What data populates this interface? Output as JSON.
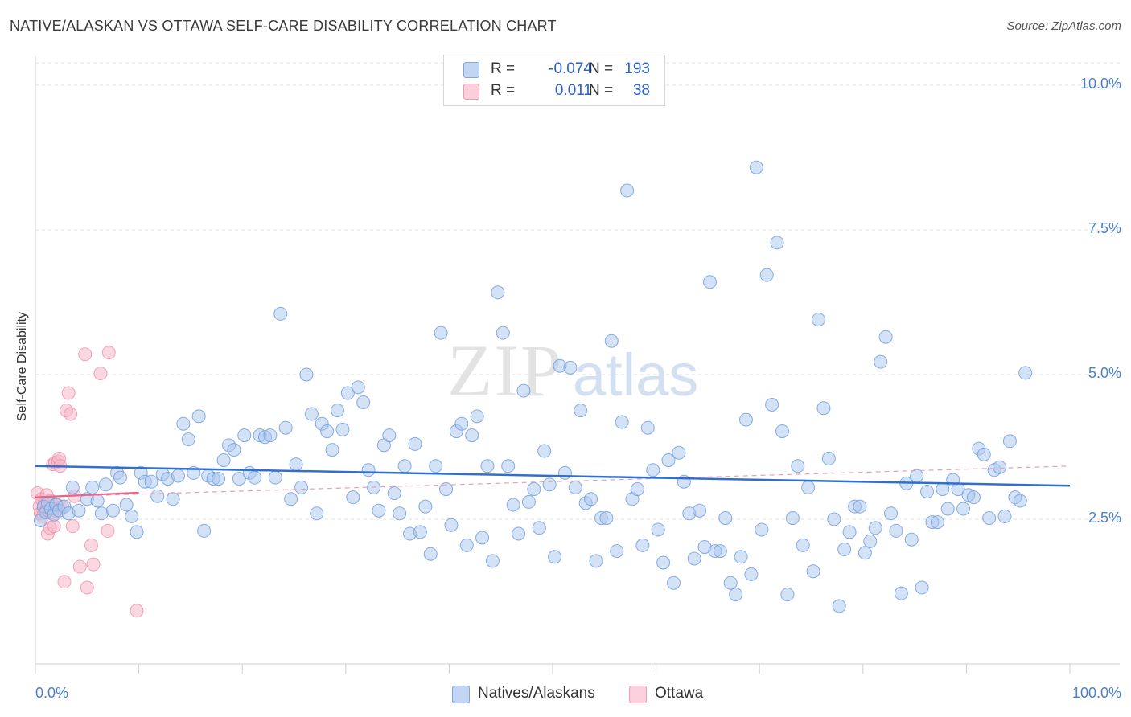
{
  "header": {
    "title": "NATIVE/ALASKAN VS OTTAWA SELF-CARE DISABILITY CORRELATION CHART",
    "source": "Source: ZipAtlas.com"
  },
  "watermark": {
    "zip": "ZIP",
    "atlas": "atlas"
  },
  "legend": {
    "series": [
      {
        "name": "Natives/Alaskans",
        "r_label": "R =",
        "r": "-0.074",
        "n_label": "N =",
        "n": "193",
        "color": "#a9c5ee"
      },
      {
        "name": "Ottawa",
        "r_label": "R =",
        "r": "0.011",
        "n_label": "N =",
        "n": "38",
        "color": "#f5b8c8"
      }
    ]
  },
  "chart_data": {
    "type": "scatter",
    "title": "NATIVE/ALASKAN VS OTTAWA SELF-CARE DISABILITY CORRELATION CHART",
    "xlabel": "",
    "ylabel": "Self-Care Disability",
    "xlim": [
      0,
      100
    ],
    "ylim": [
      0,
      10.5
    ],
    "x_tick_labels": [
      "0.0%",
      "100.0%"
    ],
    "y_ticks": [
      {
        "value": 2.5,
        "label": "2.5%"
      },
      {
        "value": 5.0,
        "label": "5.0%"
      },
      {
        "value": 7.5,
        "label": "7.5%"
      },
      {
        "value": 10.0,
        "label": "10.0%"
      }
    ],
    "grid": true,
    "series": [
      {
        "name": "Natives/Alaskans",
        "color": "#6a9ae0",
        "fill": "#a9c5ee",
        "trend": {
          "x": [
            0,
            100
          ],
          "y": [
            3.42,
            3.08
          ],
          "style": "solid",
          "color": "#2e6fd0"
        },
        "points": [
          [
            0.5,
            2.48
          ],
          [
            0.8,
            2.72
          ],
          [
            1.0,
            2.62
          ],
          [
            1.2,
            2.78
          ],
          [
            1.5,
            2.68
          ],
          [
            1.8,
            2.58
          ],
          [
            2.0,
            2.75
          ],
          [
            2.3,
            2.65
          ],
          [
            2.8,
            2.72
          ],
          [
            3.2,
            2.6
          ],
          [
            3.6,
            3.05
          ],
          [
            4.2,
            2.65
          ],
          [
            5.0,
            2.85
          ],
          [
            5.5,
            3.05
          ],
          [
            6.0,
            2.82
          ],
          [
            6.4,
            2.6
          ],
          [
            6.8,
            3.1
          ],
          [
            7.5,
            2.65
          ],
          [
            7.9,
            3.3
          ],
          [
            8.2,
            3.22
          ],
          [
            8.8,
            2.75
          ],
          [
            9.3,
            2.55
          ],
          [
            9.8,
            2.28
          ],
          [
            10.2,
            3.3
          ],
          [
            10.6,
            3.15
          ],
          [
            11.2,
            3.15
          ],
          [
            11.8,
            2.9
          ],
          [
            12.3,
            3.28
          ],
          [
            12.8,
            3.2
          ],
          [
            13.3,
            2.85
          ],
          [
            13.8,
            3.25
          ],
          [
            14.3,
            4.15
          ],
          [
            14.8,
            3.88
          ],
          [
            15.3,
            3.3
          ],
          [
            15.8,
            4.28
          ],
          [
            16.3,
            2.3
          ],
          [
            16.7,
            3.25
          ],
          [
            17.2,
            3.2
          ],
          [
            17.7,
            3.2
          ],
          [
            18.2,
            3.52
          ],
          [
            18.7,
            3.78
          ],
          [
            19.2,
            3.7
          ],
          [
            19.7,
            3.2
          ],
          [
            20.2,
            3.95
          ],
          [
            20.7,
            3.3
          ],
          [
            21.2,
            3.22
          ],
          [
            21.7,
            3.95
          ],
          [
            22.2,
            3.92
          ],
          [
            22.7,
            3.95
          ],
          [
            23.2,
            3.22
          ],
          [
            23.7,
            6.05
          ],
          [
            24.2,
            4.08
          ],
          [
            24.7,
            2.85
          ],
          [
            25.2,
            3.45
          ],
          [
            25.7,
            3.05
          ],
          [
            26.2,
            5.0
          ],
          [
            26.7,
            4.32
          ],
          [
            27.2,
            2.6
          ],
          [
            27.7,
            4.15
          ],
          [
            28.2,
            4.02
          ],
          [
            28.7,
            3.7
          ],
          [
            29.2,
            4.38
          ],
          [
            29.7,
            4.05
          ],
          [
            30.2,
            4.68
          ],
          [
            30.7,
            2.88
          ],
          [
            31.2,
            4.78
          ],
          [
            31.7,
            4.52
          ],
          [
            32.2,
            3.35
          ],
          [
            32.7,
            3.05
          ],
          [
            33.2,
            2.65
          ],
          [
            33.7,
            3.78
          ],
          [
            34.2,
            3.95
          ],
          [
            34.7,
            2.95
          ],
          [
            35.2,
            2.6
          ],
          [
            35.7,
            3.42
          ],
          [
            36.2,
            2.25
          ],
          [
            36.7,
            3.8
          ],
          [
            37.2,
            2.28
          ],
          [
            37.7,
            2.72
          ],
          [
            38.2,
            1.9
          ],
          [
            38.7,
            3.42
          ],
          [
            39.2,
            5.72
          ],
          [
            39.7,
            3.02
          ],
          [
            40.2,
            2.4
          ],
          [
            40.7,
            4.02
          ],
          [
            41.2,
            4.15
          ],
          [
            41.7,
            2.05
          ],
          [
            42.2,
            3.95
          ],
          [
            42.7,
            4.28
          ],
          [
            43.2,
            2.18
          ],
          [
            43.7,
            3.42
          ],
          [
            44.2,
            1.78
          ],
          [
            44.7,
            6.42
          ],
          [
            45.2,
            5.72
          ],
          [
            45.7,
            3.42
          ],
          [
            46.2,
            2.75
          ],
          [
            46.7,
            2.25
          ],
          [
            47.2,
            4.72
          ],
          [
            47.7,
            2.8
          ],
          [
            48.2,
            3.02
          ],
          [
            48.7,
            2.35
          ],
          [
            49.2,
            3.68
          ],
          [
            49.7,
            3.1
          ],
          [
            50.2,
            1.85
          ],
          [
            50.7,
            5.15
          ],
          [
            51.2,
            3.3
          ],
          [
            51.7,
            5.12
          ],
          [
            52.2,
            3.05
          ],
          [
            52.7,
            4.38
          ],
          [
            53.2,
            2.78
          ],
          [
            53.7,
            2.85
          ],
          [
            54.2,
            1.78
          ],
          [
            54.7,
            2.52
          ],
          [
            55.2,
            2.52
          ],
          [
            55.7,
            5.58
          ],
          [
            56.2,
            1.95
          ],
          [
            56.7,
            4.18
          ],
          [
            57.2,
            8.18
          ],
          [
            57.7,
            2.85
          ],
          [
            58.2,
            3.02
          ],
          [
            58.7,
            2.05
          ],
          [
            59.2,
            4.08
          ],
          [
            59.7,
            3.35
          ],
          [
            60.2,
            2.32
          ],
          [
            60.7,
            1.75
          ],
          [
            61.2,
            3.52
          ],
          [
            61.7,
            1.4
          ],
          [
            62.2,
            3.65
          ],
          [
            62.7,
            3.15
          ],
          [
            63.2,
            2.6
          ],
          [
            63.7,
            1.82
          ],
          [
            64.2,
            2.65
          ],
          [
            64.7,
            2.02
          ],
          [
            65.2,
            6.6
          ],
          [
            65.7,
            1.95
          ],
          [
            66.2,
            1.95
          ],
          [
            66.7,
            2.52
          ],
          [
            67.2,
            1.4
          ],
          [
            67.7,
            1.2
          ],
          [
            68.2,
            1.85
          ],
          [
            68.7,
            4.22
          ],
          [
            69.2,
            1.55
          ],
          [
            69.7,
            8.58
          ],
          [
            70.2,
            2.32
          ],
          [
            70.7,
            6.72
          ],
          [
            71.2,
            4.48
          ],
          [
            71.7,
            7.28
          ],
          [
            72.2,
            4.02
          ],
          [
            72.7,
            1.2
          ],
          [
            73.2,
            2.52
          ],
          [
            73.7,
            3.42
          ],
          [
            74.2,
            2.05
          ],
          [
            74.7,
            3.05
          ],
          [
            75.2,
            1.6
          ],
          [
            75.7,
            5.95
          ],
          [
            76.2,
            4.42
          ],
          [
            76.7,
            3.55
          ],
          [
            77.2,
            2.5
          ],
          [
            77.7,
            1.0
          ],
          [
            78.2,
            1.98
          ],
          [
            78.7,
            2.28
          ],
          [
            79.2,
            2.72
          ],
          [
            79.7,
            2.72
          ],
          [
            80.2,
            1.92
          ],
          [
            80.7,
            2.12
          ],
          [
            81.2,
            2.35
          ],
          [
            81.7,
            5.22
          ],
          [
            82.2,
            5.65
          ],
          [
            82.7,
            2.6
          ],
          [
            83.2,
            2.3
          ],
          [
            83.7,
            1.22
          ],
          [
            84.2,
            3.12
          ],
          [
            84.7,
            2.15
          ],
          [
            85.2,
            3.25
          ],
          [
            85.7,
            1.32
          ],
          [
            86.2,
            2.98
          ],
          [
            86.7,
            2.45
          ],
          [
            87.2,
            2.45
          ],
          [
            87.7,
            3.02
          ],
          [
            88.2,
            2.68
          ],
          [
            88.7,
            3.18
          ],
          [
            89.2,
            3.02
          ],
          [
            89.7,
            2.68
          ],
          [
            90.2,
            2.92
          ],
          [
            90.7,
            2.88
          ],
          [
            91.2,
            3.72
          ],
          [
            91.7,
            3.62
          ],
          [
            92.2,
            2.52
          ],
          [
            92.7,
            3.35
          ],
          [
            93.2,
            3.4
          ],
          [
            93.7,
            2.55
          ],
          [
            94.2,
            3.85
          ],
          [
            94.7,
            2.88
          ],
          [
            95.2,
            2.82
          ],
          [
            95.7,
            5.03
          ]
        ]
      },
      {
        "name": "Ottawa",
        "color": "#ee8aa6",
        "fill": "#f5b8c8",
        "trend": {
          "x": [
            0,
            10
          ],
          "y": [
            2.88,
            2.96
          ],
          "style": "solid",
          "color": "#e8648b"
        },
        "trend_extended": {
          "x": [
            0,
            100
          ],
          "y": [
            2.88,
            3.42
          ],
          "style": "dashed",
          "color": "#e8a0b6"
        },
        "points": [
          [
            0.2,
            2.95
          ],
          [
            0.4,
            2.72
          ],
          [
            0.5,
            2.6
          ],
          [
            0.6,
            2.85
          ],
          [
            0.7,
            2.55
          ],
          [
            0.8,
            2.7
          ],
          [
            0.9,
            2.78
          ],
          [
            1.0,
            2.65
          ],
          [
            1.1,
            2.92
          ],
          [
            1.2,
            2.25
          ],
          [
            1.3,
            2.7
          ],
          [
            1.4,
            2.35
          ],
          [
            1.5,
            2.82
          ],
          [
            1.6,
            2.62
          ],
          [
            1.7,
            3.45
          ],
          [
            1.8,
            2.38
          ],
          [
            1.9,
            3.48
          ],
          [
            2.0,
            2.65
          ],
          [
            2.1,
            2.75
          ],
          [
            2.2,
            3.5
          ],
          [
            2.3,
            3.55
          ],
          [
            2.4,
            3.42
          ],
          [
            2.6,
            2.72
          ],
          [
            2.8,
            1.42
          ],
          [
            3.0,
            4.38
          ],
          [
            3.2,
            4.68
          ],
          [
            3.4,
            4.32
          ],
          [
            3.6,
            2.38
          ],
          [
            3.8,
            2.9
          ],
          [
            4.3,
            1.68
          ],
          [
            4.8,
            5.35
          ],
          [
            5.0,
            1.32
          ],
          [
            5.4,
            2.05
          ],
          [
            5.6,
            1.72
          ],
          [
            6.3,
            5.02
          ],
          [
            7.0,
            2.3
          ],
          [
            7.1,
            5.38
          ],
          [
            9.8,
            0.92
          ]
        ]
      }
    ]
  }
}
